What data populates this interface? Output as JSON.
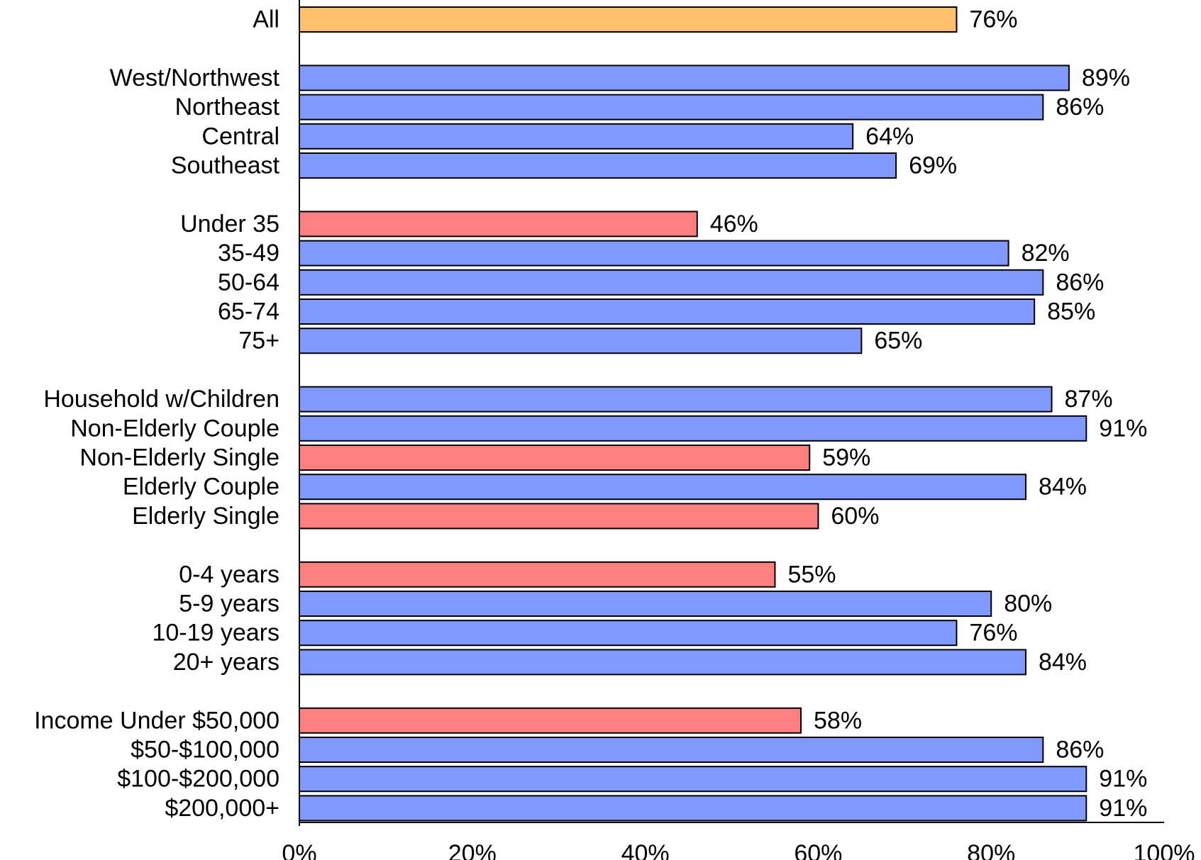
{
  "chart_data": {
    "type": "bar",
    "orientation": "horizontal",
    "title": "",
    "xlabel": "",
    "ylabel": "",
    "xlim": [
      0,
      100
    ],
    "x_ticks": [
      "0%",
      "20%",
      "40%",
      "60%",
      "80%",
      "100%"
    ],
    "value_suffix": "%",
    "grid": false,
    "legend": "none",
    "colors": {
      "overall": "#FFC06C",
      "high": "#7F99FF",
      "low": "#FF7F7F",
      "outline": "#000000"
    },
    "groups": [
      {
        "bars": [
          {
            "label": "All",
            "value": 76,
            "color_key": "overall"
          }
        ]
      },
      {
        "bars": [
          {
            "label": "West/Northwest",
            "value": 89,
            "color_key": "high"
          },
          {
            "label": "Northeast",
            "value": 86,
            "color_key": "high"
          },
          {
            "label": "Central",
            "value": 64,
            "color_key": "high"
          },
          {
            "label": "Southeast",
            "value": 69,
            "color_key": "high"
          }
        ]
      },
      {
        "bars": [
          {
            "label": "Under 35",
            "value": 46,
            "color_key": "low"
          },
          {
            "label": "35-49",
            "value": 82,
            "color_key": "high"
          },
          {
            "label": "50-64",
            "value": 86,
            "color_key": "high"
          },
          {
            "label": "65-74",
            "value": 85,
            "color_key": "high"
          },
          {
            "label": "75+",
            "value": 65,
            "color_key": "high"
          }
        ]
      },
      {
        "bars": [
          {
            "label": "Household w/Children",
            "value": 87,
            "color_key": "high"
          },
          {
            "label": "Non-Elderly Couple",
            "value": 91,
            "color_key": "high"
          },
          {
            "label": "Non-Elderly Single",
            "value": 59,
            "color_key": "low"
          },
          {
            "label": "Elderly Couple",
            "value": 84,
            "color_key": "high"
          },
          {
            "label": "Elderly Single",
            "value": 60,
            "color_key": "low"
          }
        ]
      },
      {
        "bars": [
          {
            "label": "0-4 years",
            "value": 55,
            "color_key": "low"
          },
          {
            "label": "5-9 years",
            "value": 80,
            "color_key": "high"
          },
          {
            "label": "10-19 years",
            "value": 76,
            "color_key": "high"
          },
          {
            "label": "20+ years",
            "value": 84,
            "color_key": "high"
          }
        ]
      },
      {
        "bars": [
          {
            "label": "Income Under $50,000",
            "value": 58,
            "color_key": "low"
          },
          {
            "label": "$50-$100,000",
            "value": 86,
            "color_key": "high"
          },
          {
            "label": "$100-$200,000",
            "value": 91,
            "color_key": "high"
          },
          {
            "label": "$200,000+",
            "value": 91,
            "color_key": "high"
          }
        ]
      }
    ]
  }
}
